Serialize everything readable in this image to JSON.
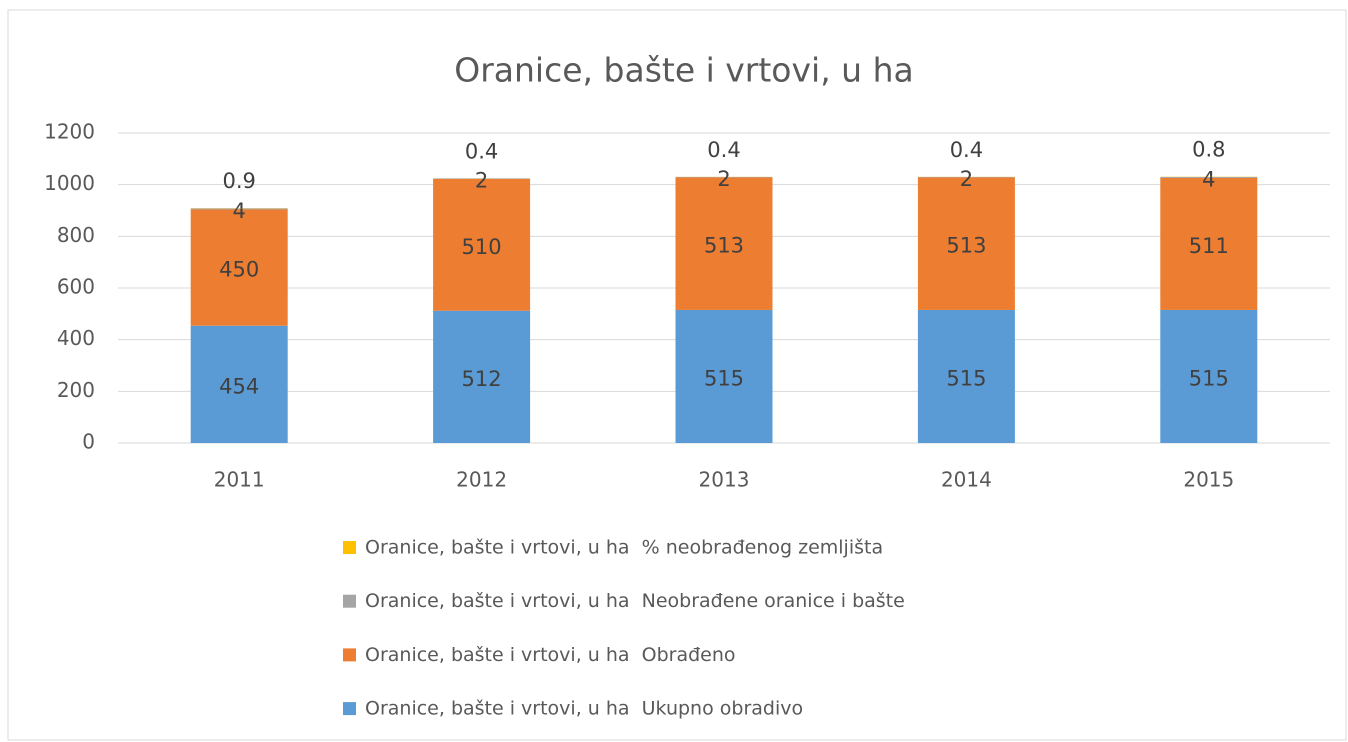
{
  "chart_data": {
    "type": "bar",
    "stacked": true,
    "title": "Oranice, bašte i vrtovi, u ha",
    "categories": [
      "2011",
      "2012",
      "2013",
      "2014",
      "2015"
    ],
    "series": [
      {
        "name": "Oranice, bašte i vrtovi, u ha  Ukupno obradivo",
        "color": "#5b9bd5",
        "values": [
          454,
          512,
          515,
          515,
          515
        ]
      },
      {
        "name": "Oranice, bašte i vrtovi, u ha  Obrađeno",
        "color": "#ed7d31",
        "values": [
          450,
          510,
          513,
          513,
          511
        ]
      },
      {
        "name": "Oranice, bašte i vrtovi, u ha  Neobrađene oranice i bašte",
        "color": "#a5a5a5",
        "values": [
          4,
          2,
          2,
          2,
          4
        ]
      },
      {
        "name": "Oranice, bašte i vrtovi, u ha  % neobrađenog zemljišta",
        "color": "#ffc000",
        "values": [
          0.9,
          0.4,
          0.4,
          0.4,
          0.8
        ]
      }
    ],
    "ylim": [
      0,
      1200
    ],
    "yticks": [
      0,
      200,
      400,
      600,
      800,
      1000,
      1200
    ],
    "grid": true,
    "legend": "bottom"
  }
}
